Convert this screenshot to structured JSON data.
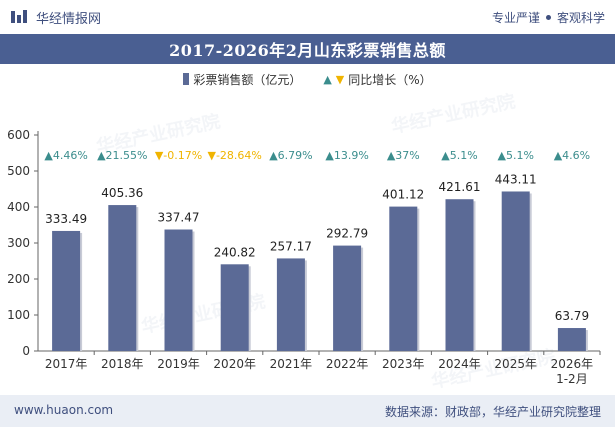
{
  "header": {
    "brand_name": "华经情报网",
    "tagline_left": "专业严谨",
    "tagline_right": "客观科学"
  },
  "footer": {
    "website": "www.huaon.com",
    "source": "数据来源：财政部，华经产业研究院整理"
  },
  "watermark_text": "华经产业研究院",
  "colors": {
    "bar": "#5b6a96",
    "title_bg": "#4a5f92",
    "up": "#3b8d8d",
    "down": "#f0b400"
  },
  "chart_data": {
    "type": "bar",
    "title": "2017-2026年2月山东彩票销售总额",
    "categories": [
      "2017年",
      "2018年",
      "2019年",
      "2020年",
      "2021年",
      "2022年",
      "2023年",
      "2024年",
      "2025年",
      "2026年\n1-2月"
    ],
    "series": [
      {
        "name": "彩票销售额（亿元）",
        "values": [
          333.49,
          405.36,
          337.47,
          240.82,
          257.17,
          292.79,
          401.12,
          421.61,
          443.11,
          63.79
        ]
      },
      {
        "name": "同比增长（%）",
        "values": [
          4.46,
          21.55,
          -0.17,
          -28.64,
          6.79,
          13.9,
          37,
          5.1,
          5.1,
          4.6
        ]
      }
    ],
    "value_labels": [
      "333.49",
      "405.36",
      "337.47",
      "240.82",
      "257.17",
      "292.79",
      "401.12",
      "421.61",
      "443.11",
      "63.79"
    ],
    "growth_labels": [
      "4.46%",
      "21.55%",
      "-0.17%",
      "-28.64%",
      "6.79%",
      "13.9%",
      "37%",
      "5.1%",
      "5.1%",
      "4.6%"
    ],
    "yticks": [
      "0",
      "100",
      "200",
      "300",
      "400",
      "500",
      "600"
    ],
    "ylim": [
      0,
      600
    ],
    "legend_position": "top-center",
    "grid": false
  }
}
